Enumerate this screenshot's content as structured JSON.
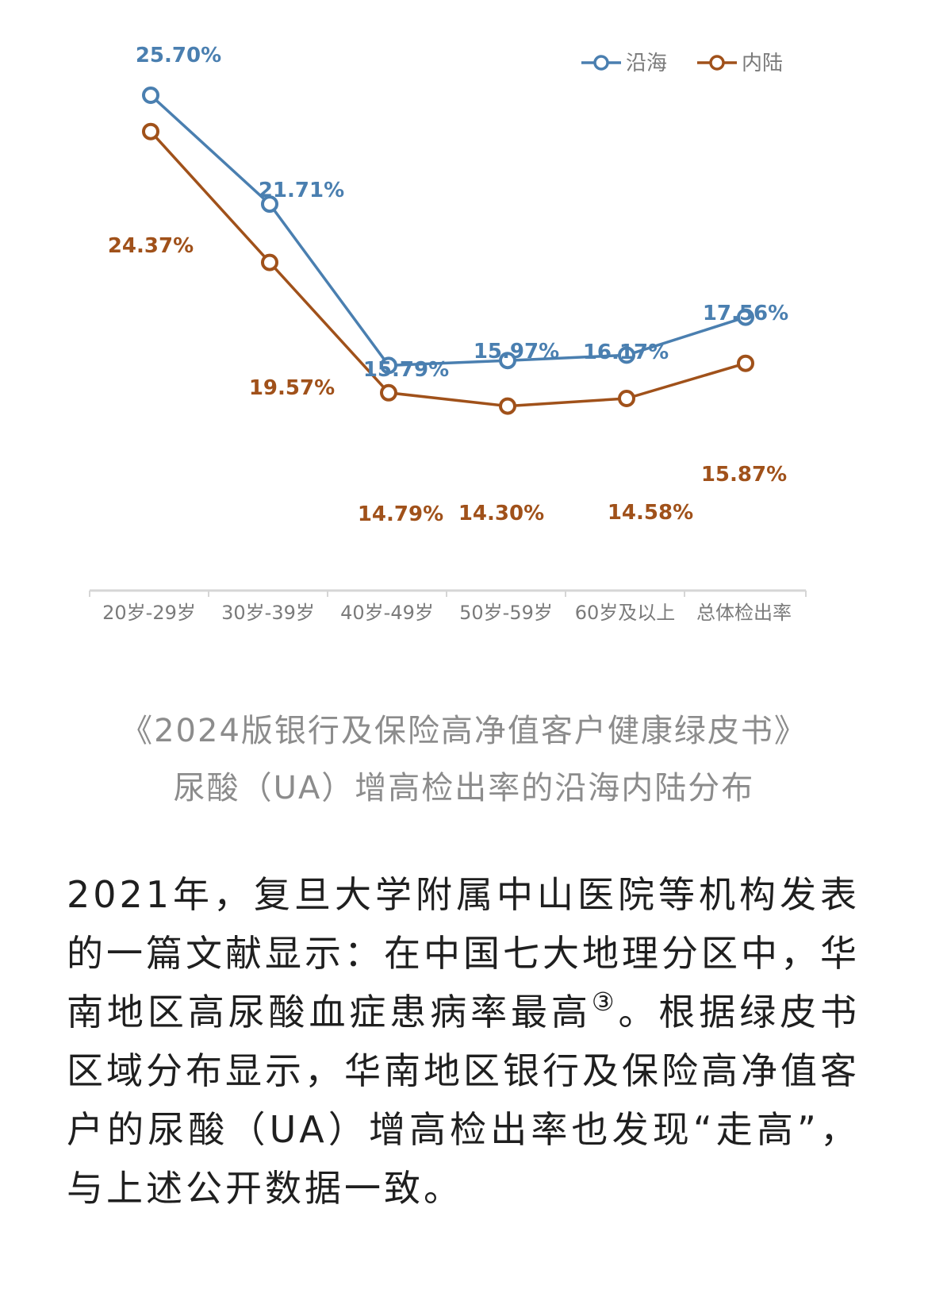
{
  "chart_data": {
    "type": "line",
    "categories": [
      "20岁-29岁",
      "30岁-39岁",
      "40岁-49岁",
      "50岁-59岁",
      "60岁及以上",
      "总体检出率"
    ],
    "series": [
      {
        "name": "沿海",
        "color": "#4a7fb0",
        "values": [
          25.7,
          21.71,
          15.79,
          15.97,
          16.17,
          17.56
        ],
        "labels": [
          "25.70%",
          "21.71%",
          "15.79%",
          "15.97%",
          "16.17%",
          "17.56%"
        ]
      },
      {
        "name": "内陆",
        "color": "#a0511a",
        "values": [
          24.37,
          19.57,
          14.79,
          14.3,
          14.58,
          15.87
        ],
        "labels": [
          "24.37%",
          "19.57%",
          "14.79%",
          "14.30%",
          "14.58%",
          "15.87%"
        ]
      }
    ],
    "unit": "%",
    "legend_position": "top-right",
    "grid": false
  },
  "caption": {
    "line1": "《2024版银行及保险高净值客户健康绿皮书》",
    "line2": "尿酸（UA）增高检出率的沿海内陆分布"
  },
  "article": {
    "part1": "2021年，复旦大学附属中山医院等机构发表的一篇文献显示：在中国七大地理分区中，华南地区高尿酸血症患病率最高",
    "ref": "③",
    "part2": "。根据绿皮书区域分布显示，华南地区银行及保险高净值客户的尿酸（UA）增高检出率也发现“走高”，与上述公开数据一致。"
  }
}
